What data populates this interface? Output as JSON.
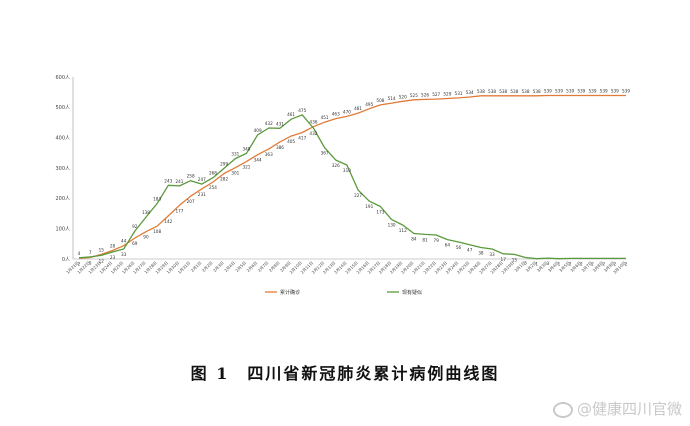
{
  "chart_data": {
    "type": "line",
    "yticks": [
      "0人",
      "100人",
      "200人",
      "300人",
      "400人",
      "500人",
      "600人"
    ],
    "ylim": [
      0,
      600
    ],
    "grid": false,
    "legend_position": "bottom",
    "categories": [
      "1月21日",
      "1月22日",
      "1月23日",
      "1月24日",
      "1月25日",
      "1月26日",
      "1月27日",
      "1月28日",
      "1月29日",
      "1月30日",
      "1月31日",
      "2月1日",
      "2月2日",
      "2月3日",
      "2月4日",
      "2月5日",
      "2月6日",
      "2月7日",
      "2月8日",
      "2月9日",
      "2月10日",
      "2月11日",
      "2月12日",
      "2月13日",
      "2月14日",
      "2月15日",
      "2月16日",
      "2月17日",
      "2月18日",
      "2月19日",
      "2月20日",
      "2月21日",
      "2月22日",
      "2月23日",
      "2月24日",
      "2月25日",
      "2月26日",
      "2月27日",
      "2月28日",
      "2月29日",
      "3月1日",
      "3月2日",
      "3月3日",
      "3月4日",
      "3月5日",
      "3月6日",
      "3月7日",
      "3月8日",
      "3月9日",
      "3月10日"
    ],
    "series": [
      {
        "name": "累计确诊",
        "color": "#e07b39",
        "values": [
          2,
          5,
          15,
          28,
          44,
          69,
          90,
          108,
          142,
          177,
          207,
          231,
          254,
          282,
          301,
          321,
          344,
          363,
          386,
          405,
          417,
          436,
          451,
          463,
          470,
          481,
          495,
          508,
          514,
          520,
          525,
          526,
          527,
          529,
          531,
          534,
          538,
          538,
          538,
          538,
          538,
          538,
          539,
          539,
          539,
          539,
          539,
          539,
          539,
          539
        ]
      },
      {
        "name": "现有疑似",
        "color": "#5a9a3c",
        "values": [
          4,
          7,
          12,
          23,
          33,
          92,
          138,
          183,
          243,
          241,
          258,
          247,
          268,
          299,
          331,
          348,
          409,
          432,
          431,
          461,
          475,
          432,
          367,
          326,
          310,
          227,
          191,
          173,
          130,
          112,
          84,
          81,
          79,
          64,
          56,
          47,
          38,
          33,
          17,
          15,
          5,
          1,
          3,
          1,
          2,
          2,
          2,
          2,
          2,
          2
        ]
      }
    ],
    "conf_labels": [
      "2",
      "5",
      "15",
      "28",
      "44",
      "69",
      "90",
      "108",
      "142",
      "177",
      "207",
      "231",
      "254",
      "282",
      "301",
      "321",
      "344",
      "363",
      "386",
      "405",
      "417",
      "436",
      "451",
      "463",
      "470",
      "481",
      "495",
      "508",
      "514",
      "520",
      "525",
      "526",
      "527",
      "529",
      "531",
      "534",
      "538",
      "538",
      "538",
      "538",
      "538",
      "538",
      "539",
      "539",
      "539",
      "539",
      "539",
      "539",
      "539",
      "539"
    ],
    "susp_labels": [
      "4",
      "7",
      "12",
      "23",
      "33",
      "92",
      "138",
      "183",
      "243",
      "241",
      "258",
      "247",
      "268",
      "299",
      "331",
      "348",
      "409",
      "432",
      "431",
      "461",
      "475",
      "432",
      "367",
      "326",
      "310",
      "227",
      "191",
      "173",
      "130",
      "112",
      "84",
      "81",
      "79",
      "64",
      "56",
      "47",
      "38",
      "33",
      "17",
      "15",
      "5",
      "1",
      "3",
      "1",
      "2",
      "2",
      "2",
      "2",
      "2",
      "2"
    ]
  },
  "caption": {
    "figure_number": "图 1",
    "title": "四川省新冠肺炎累计病例曲线图"
  },
  "watermark": "@健康四川官微"
}
